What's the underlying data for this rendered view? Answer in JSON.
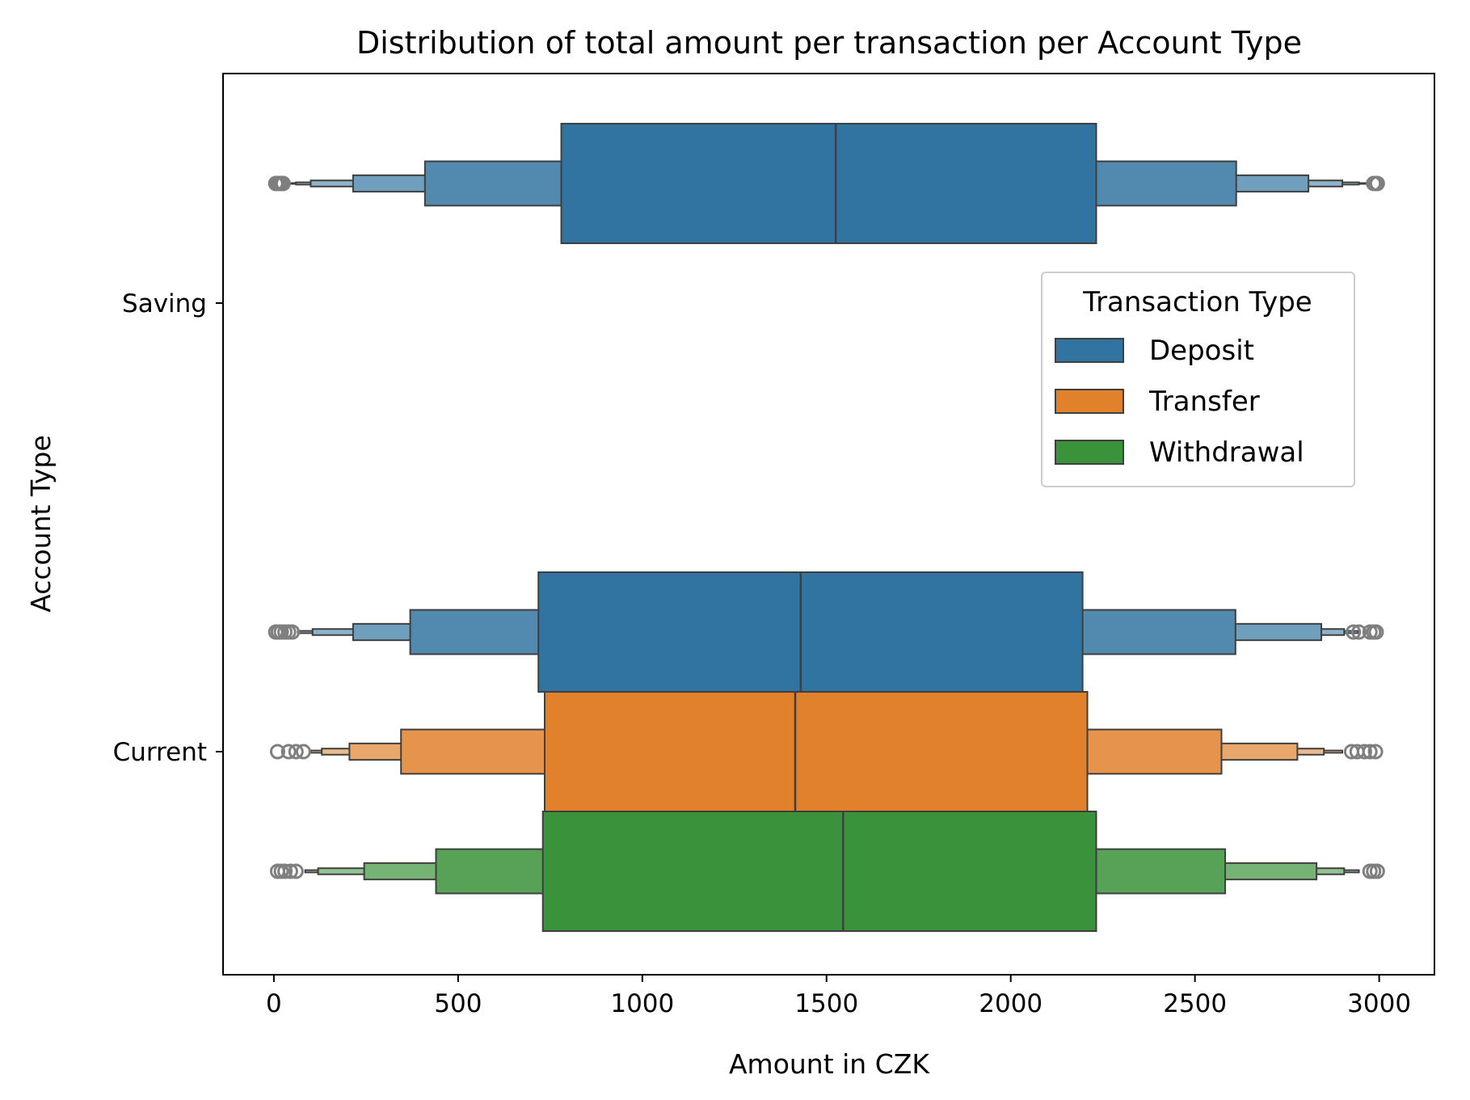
{
  "chart_data": {
    "type": "boxen",
    "orientation": "horizontal",
    "title": "Distribution of total amount per transaction per Account Type",
    "xlabel": "Amount in CZK",
    "ylabel": "Account Type",
    "xlim": [
      -138,
      3150
    ],
    "xticks": [
      0,
      500,
      1000,
      1500,
      2000,
      2500,
      3000
    ],
    "xtick_labels": [
      "0",
      "500",
      "1000",
      "1500",
      "2000",
      "2500",
      "3000"
    ],
    "categories": [
      "Saving",
      "Current"
    ],
    "legend": {
      "title": "Transaction Type",
      "entries": [
        "Deposit",
        "Transfer",
        "Withdrawal"
      ],
      "position": "center-right"
    },
    "grid": false,
    "series": [
      {
        "name": "Deposit",
        "color": "#3274a1",
        "groups": [
          {
            "category": "Saving",
            "median": 1525,
            "letter_values": [
              [
                780,
                2232
              ],
              [
                410,
                2612
              ],
              [
                215,
                2808
              ],
              [
                100,
                2900
              ],
              [
                60,
                2945
              ],
              [
                35,
                2975
              ]
            ],
            "outliers": [
              5,
              10,
              15,
              20,
              25,
              2985,
              2990,
              2995
            ]
          },
          {
            "category": "Current",
            "median": 1430,
            "letter_values": [
              [
                718,
                2195
              ],
              [
                370,
                2610
              ],
              [
                215,
                2843
              ],
              [
                105,
                2905
              ],
              [
                65,
                2945
              ]
            ],
            "outliers": [
              5,
              12,
              20,
              30,
              40,
              50,
              2930,
              2945,
              2975,
              2985,
              2992
            ]
          }
        ]
      },
      {
        "name": "Transfer",
        "color": "#e1812c",
        "groups": [
          {
            "category": "Current",
            "median": 1415,
            "letter_values": [
              [
                735,
                2208
              ],
              [
                345,
                2572
              ],
              [
                205,
                2778
              ],
              [
                130,
                2850
              ],
              [
                100,
                2900
              ]
            ],
            "outliers": [
              10,
              40,
              60,
              80,
              2925,
              2940,
              2960,
              2975,
              2990
            ]
          }
        ]
      },
      {
        "name": "Withdrawal",
        "color": "#3a923a",
        "groups": [
          {
            "category": "Current",
            "median": 1545,
            "letter_values": [
              [
                730,
                2232
              ],
              [
                440,
                2582
              ],
              [
                245,
                2830
              ],
              [
                120,
                2905
              ],
              [
                85,
                2945
              ]
            ],
            "outliers": [
              10,
              20,
              30,
              45,
              60,
              2975,
              2985,
              2995
            ]
          }
        ]
      }
    ]
  }
}
